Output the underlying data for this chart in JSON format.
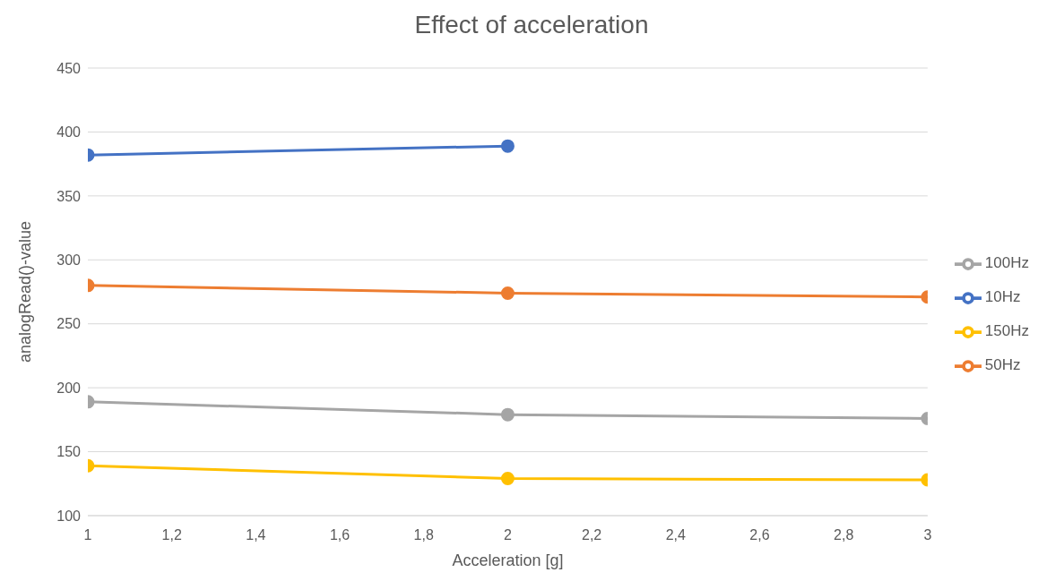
{
  "chart_data": {
    "type": "line",
    "title": "Effect of acceleration",
    "xlabel": "Acceleration [g]",
    "ylabel": "analogRead()-value",
    "x": [
      1,
      2,
      3
    ],
    "series": [
      {
        "name": "10Hz",
        "color": "#4472c4",
        "values": [
          382,
          389,
          null
        ]
      },
      {
        "name": "50Hz",
        "color": "#ed7d31",
        "values": [
          280,
          274,
          271
        ]
      },
      {
        "name": "100Hz",
        "color": "#a5a5a5",
        "values": [
          189,
          179,
          176
        ]
      },
      {
        "name": "150Hz",
        "color": "#ffc000",
        "values": [
          139,
          129,
          128
        ]
      }
    ],
    "xlim": [
      1,
      3
    ],
    "xticks": [
      1,
      {
        "value": 1.2,
        "label": "1,2"
      },
      {
        "value": 1.4,
        "label": "1,4"
      },
      {
        "value": 1.6,
        "label": "1,6"
      },
      {
        "value": 1.8,
        "label": "1,8"
      },
      2,
      {
        "value": 2.2,
        "label": "2,2"
      },
      {
        "value": 2.4,
        "label": "2,4"
      },
      {
        "value": 2.6,
        "label": "2,6"
      },
      {
        "value": 2.8,
        "label": "2,8"
      },
      3
    ],
    "ylim": [
      100,
      450
    ],
    "yticks": [
      100,
      150,
      200,
      250,
      300,
      350,
      400,
      450
    ],
    "grid": "y",
    "legend": "right",
    "marker": "circle",
    "line_style": "solid"
  }
}
